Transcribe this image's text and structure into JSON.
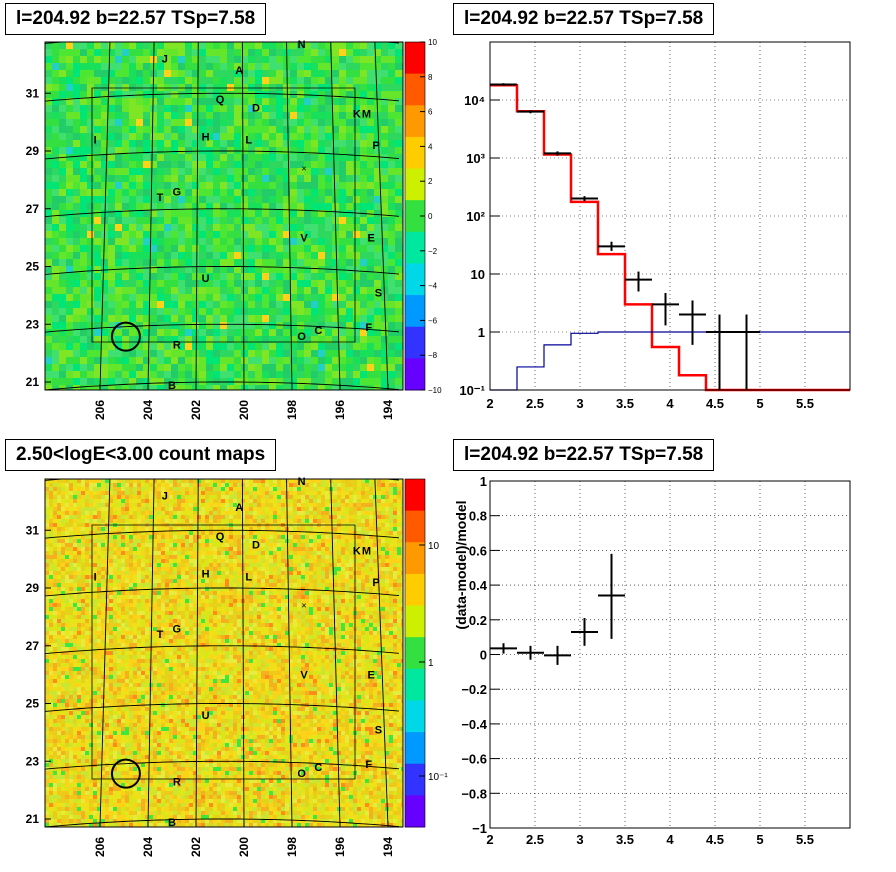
{
  "titles": {
    "top_left": "l=204.92 b=22.57 TSp=7.58",
    "top_right": "l=204.92 b=22.57 TSp=7.58",
    "bottom_left": "2.50<logE<3.00 count maps",
    "bottom_right": "l=204.92 b=22.57 TSp=7.58"
  },
  "maps": {
    "x_ticks": [
      "206",
      "204",
      "202",
      "200",
      "198",
      "196",
      "194"
    ],
    "y_ticks": [
      "21",
      "23",
      "25",
      "27",
      "29",
      "31"
    ],
    "sources": [
      {
        "name": "N",
        "l": 197.6,
        "b": 32.7
      },
      {
        "name": "J",
        "l": 203.3,
        "b": 32.2
      },
      {
        "name": "A",
        "l": 200.2,
        "b": 31.8
      },
      {
        "name": "Q",
        "l": 201.0,
        "b": 30.8
      },
      {
        "name": "D",
        "l": 199.5,
        "b": 30.5
      },
      {
        "name": "K",
        "l": 195.3,
        "b": 30.3
      },
      {
        "name": "M",
        "l": 194.9,
        "b": 30.3
      },
      {
        "name": "H",
        "l": 201.6,
        "b": 29.5
      },
      {
        "name": "L",
        "l": 199.8,
        "b": 29.4
      },
      {
        "name": "I",
        "l": 206.2,
        "b": 29.4
      },
      {
        "name": "P",
        "l": 194.5,
        "b": 29.2
      },
      {
        "name": "G",
        "l": 202.8,
        "b": 27.6
      },
      {
        "name": "T",
        "l": 203.5,
        "b": 27.4
      },
      {
        "name": "V",
        "l": 197.5,
        "b": 26.0
      },
      {
        "name": "E",
        "l": 194.7,
        "b": 26.0
      },
      {
        "name": "U",
        "l": 201.6,
        "b": 24.6
      },
      {
        "name": "S",
        "l": 194.4,
        "b": 24.1
      },
      {
        "name": "F",
        "l": 194.8,
        "b": 22.9
      },
      {
        "name": "C",
        "l": 196.9,
        "b": 22.8
      },
      {
        "name": "O",
        "l": 197.6,
        "b": 22.6
      },
      {
        "name": "R",
        "l": 202.8,
        "b": 22.3
      },
      {
        "name": "B",
        "l": 203.0,
        "b": 20.9
      }
    ],
    "circle": {
      "l": 204.92,
      "b": 22.57,
      "radius_deg": 0.55
    },
    "cross": {
      "l": 197.5,
      "b": 28.4
    },
    "top_colorbar_ticks": [
      "10",
      "8",
      "6",
      "4",
      "2",
      "0",
      "−2",
      "−4",
      "−6",
      "−8",
      "−10"
    ],
    "bottom_colorbar_ticks": [
      "10",
      "1",
      "10⁻¹"
    ]
  },
  "chart_data": [
    {
      "type": "line",
      "panel": "top_right",
      "title": "l=204.92 b=22.57 TSp=7.58",
      "xlim": [
        2,
        6
      ],
      "ylim": [
        0.1,
        100000
      ],
      "y_log": true,
      "grid": true,
      "x_ticks": [
        "2",
        "2.5",
        "3",
        "3.5",
        "4",
        "4.5",
        "5",
        "5.5"
      ],
      "y_ticks": [
        {
          "v": 10000,
          "label": "10⁴"
        },
        {
          "v": 1000,
          "label": "10³"
        },
        {
          "v": 100,
          "label": "10²"
        },
        {
          "v": 10,
          "label": "10"
        },
        {
          "v": 1,
          "label": "1"
        },
        {
          "v": 0.1,
          "label": "10⁻¹"
        }
      ],
      "series": [
        {
          "color": "#ff0000",
          "edges": [
            2.0,
            2.3,
            2.6,
            2.9,
            3.2,
            3.5,
            3.8,
            4.1,
            4.4,
            6.0
          ],
          "values": [
            18000,
            6400,
            1150,
            175,
            22,
            3.0,
            0.55,
            0.18,
            0.1
          ]
        },
        {
          "color": "#000099",
          "edges": [
            2.0,
            2.3,
            2.6,
            2.9,
            3.2,
            6.0
          ],
          "values": [
            0.08,
            0.25,
            0.6,
            0.95,
            1.0
          ]
        },
        {
          "color": "#000000",
          "kind": "errorbar",
          "points": [
            {
              "x": 2.15,
              "dx": 0.15,
              "y": 18500,
              "lo": 17500,
              "hi": 19500
            },
            {
              "x": 2.45,
              "dx": 0.15,
              "y": 6300,
              "lo": 5900,
              "hi": 6700
            },
            {
              "x": 2.75,
              "dx": 0.15,
              "y": 1200,
              "lo": 1100,
              "hi": 1300
            },
            {
              "x": 3.05,
              "dx": 0.15,
              "y": 200,
              "lo": 180,
              "hi": 220
            },
            {
              "x": 3.35,
              "dx": 0.15,
              "y": 30,
              "lo": 25,
              "hi": 36
            },
            {
              "x": 3.65,
              "dx": 0.15,
              "y": 8,
              "lo": 5,
              "hi": 11
            },
            {
              "x": 3.95,
              "dx": 0.15,
              "y": 3,
              "lo": 1.3,
              "hi": 4.7
            },
            {
              "x": 4.25,
              "dx": 0.15,
              "y": 2,
              "lo": 0.6,
              "hi": 3.5
            },
            {
              "x": 4.55,
              "dx": 0.15,
              "y": 1,
              "lo": 0.08,
              "hi": 2.0
            },
            {
              "x": 4.85,
              "dx": 0.15,
              "y": 1,
              "lo": 0.08,
              "hi": 2.0
            }
          ]
        }
      ]
    },
    {
      "type": "scatter",
      "panel": "bottom_right",
      "title": "l=204.92 b=22.57 TSp=7.58",
      "ylabel": "(data-model)/model",
      "xlim": [
        2,
        6
      ],
      "ylim": [
        -1,
        1
      ],
      "grid": true,
      "x_ticks": [
        "2",
        "2.5",
        "3",
        "3.5",
        "4",
        "4.5",
        "5",
        "5.5"
      ],
      "y_ticks": [
        "1",
        "0.8",
        "0.6",
        "0.4",
        "0.2",
        "0",
        "−0.2",
        "−0.4",
        "−0.6",
        "−0.8",
        "−1"
      ],
      "points": [
        {
          "x": 2.15,
          "dx": 0.15,
          "y": 0.035,
          "lo": 0.005,
          "hi": 0.065
        },
        {
          "x": 2.45,
          "dx": 0.15,
          "y": 0.01,
          "lo": -0.03,
          "hi": 0.05
        },
        {
          "x": 2.75,
          "dx": 0.15,
          "y": -0.005,
          "lo": -0.06,
          "hi": 0.05
        },
        {
          "x": 3.05,
          "dx": 0.15,
          "y": 0.13,
          "lo": 0.05,
          "hi": 0.21
        },
        {
          "x": 3.35,
          "dx": 0.15,
          "y": 0.34,
          "lo": 0.09,
          "hi": 0.58
        }
      ]
    }
  ]
}
